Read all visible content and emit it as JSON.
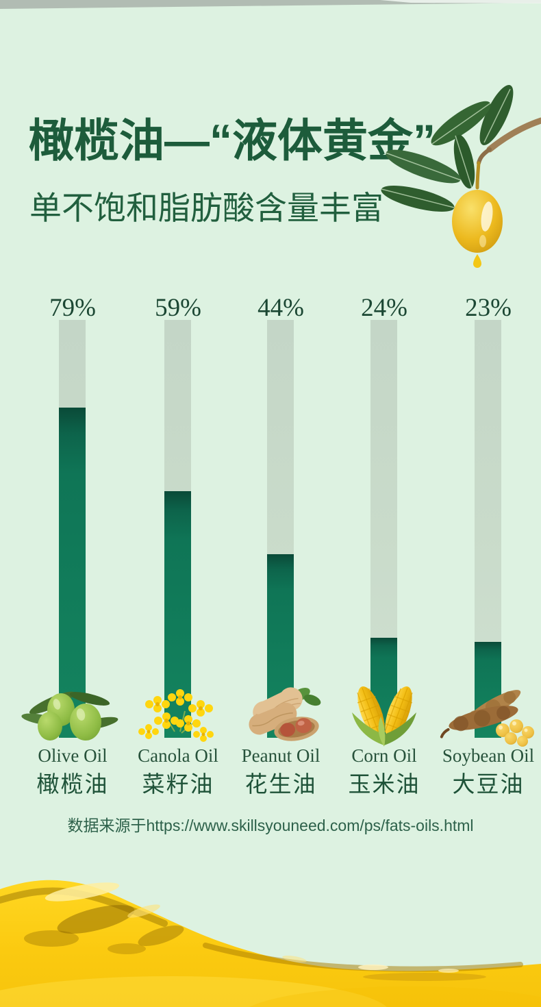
{
  "page": {
    "title": "橄榄油—“液体黄金”",
    "subtitle": "单不饱和脂肪酸含量丰富",
    "source_note": "数据来源于https://www.skillsyouneed.com/ps/fats-oils.html"
  },
  "colors": {
    "background": "#ddf2e1",
    "title_green": "#1d5c3b",
    "bar_fill_green": "#0f7a58",
    "bar_track": "#c9dacb",
    "oil_gold": "#fbca10"
  },
  "chart_data": {
    "type": "bar",
    "title": "橄榄油—“液体黄金”",
    "subtitle": "单不饱和脂肪酸含量丰富",
    "orientation": "vertical",
    "categories": [
      "Olive Oil",
      "Canola Oil",
      "Peanut Oil",
      "Corn Oil",
      "Soybean Oil"
    ],
    "categories_zh": [
      "橄榄油",
      "菜籽油",
      "花生油",
      "玉米油",
      "大豆油"
    ],
    "values": [
      79,
      59,
      44,
      24,
      23
    ],
    "value_labels": [
      "79%",
      "59%",
      "44%",
      "24%",
      "23%"
    ],
    "unit": "%",
    "ylim": [
      0,
      100
    ],
    "grid": false,
    "legend": "none",
    "icons": [
      "olives-icon",
      "canola-flower-icon",
      "peanut-icon",
      "corn-icon",
      "soybean-icon"
    ],
    "source": "数据来源于https://www.skillsyouneed.com/ps/fats-oils.html"
  }
}
